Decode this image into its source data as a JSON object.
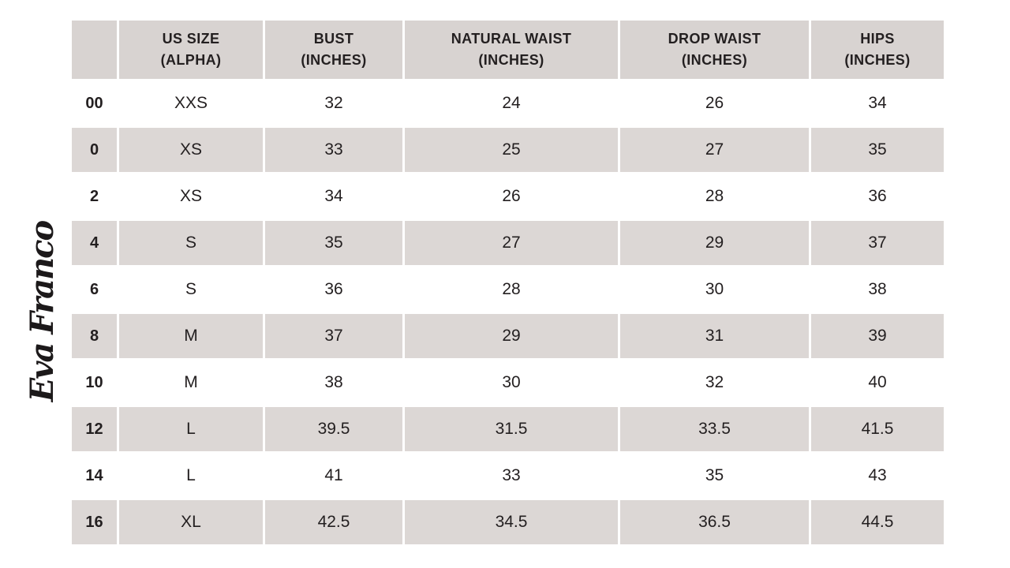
{
  "page": {
    "background": "#ffffff",
    "text_color": "#231f20"
  },
  "logo": {
    "text": "Eva Franco"
  },
  "table": {
    "header_bg": "#d8d3d1",
    "stripe_bg": "#dcd7d5",
    "row_bg": "#ffffff",
    "headers": [
      {
        "line1": "",
        "line2": ""
      },
      {
        "line1": "US SIZE",
        "line2": "(ALPHA)"
      },
      {
        "line1": "BUST",
        "line2": "(INCHES)"
      },
      {
        "line1": "NATURAL WAIST",
        "line2": "(INCHES)"
      },
      {
        "line1": "DROP WAIST",
        "line2": "(INCHES)"
      },
      {
        "line1": "HIPS",
        "line2": "(INCHES)"
      }
    ],
    "rows": [
      {
        "size": "00",
        "alpha": "XXS",
        "bust": "32",
        "natural_waist": "24",
        "drop_waist": "26",
        "hips": "34"
      },
      {
        "size": "0",
        "alpha": "XS",
        "bust": "33",
        "natural_waist": "25",
        "drop_waist": "27",
        "hips": "35"
      },
      {
        "size": "2",
        "alpha": "XS",
        "bust": "34",
        "natural_waist": "26",
        "drop_waist": "28",
        "hips": "36"
      },
      {
        "size": "4",
        "alpha": "S",
        "bust": "35",
        "natural_waist": "27",
        "drop_waist": "29",
        "hips": "37"
      },
      {
        "size": "6",
        "alpha": "S",
        "bust": "36",
        "natural_waist": "28",
        "drop_waist": "30",
        "hips": "38"
      },
      {
        "size": "8",
        "alpha": "M",
        "bust": "37",
        "natural_waist": "29",
        "drop_waist": "31",
        "hips": "39"
      },
      {
        "size": "10",
        "alpha": "M",
        "bust": "38",
        "natural_waist": "30",
        "drop_waist": "32",
        "hips": "40"
      },
      {
        "size": "12",
        "alpha": "L",
        "bust": "39.5",
        "natural_waist": "31.5",
        "drop_waist": "33.5",
        "hips": "41.5"
      },
      {
        "size": "14",
        "alpha": "L",
        "bust": "41",
        "natural_waist": "33",
        "drop_waist": "35",
        "hips": "43"
      },
      {
        "size": "16",
        "alpha": "XL",
        "bust": "42.5",
        "natural_waist": "34.5",
        "drop_waist": "36.5",
        "hips": "44.5"
      }
    ]
  },
  "chart_data": {
    "type": "table",
    "title": "Eva Franco Size Chart",
    "columns": [
      "",
      "US SIZE (ALPHA)",
      "BUST (INCHES)",
      "NATURAL WAIST (INCHES)",
      "DROP WAIST (INCHES)",
      "HIPS (INCHES)"
    ],
    "rows": [
      [
        "00",
        "XXS",
        32,
        24,
        26,
        34
      ],
      [
        "0",
        "XS",
        33,
        25,
        27,
        35
      ],
      [
        "2",
        "XS",
        34,
        26,
        28,
        36
      ],
      [
        "4",
        "S",
        35,
        27,
        29,
        37
      ],
      [
        "6",
        "S",
        36,
        28,
        30,
        38
      ],
      [
        "8",
        "M",
        37,
        29,
        31,
        39
      ],
      [
        "10",
        "M",
        38,
        30,
        32,
        40
      ],
      [
        "12",
        "L",
        39.5,
        31.5,
        33.5,
        41.5
      ],
      [
        "14",
        "L",
        41,
        33,
        35,
        43
      ],
      [
        "16",
        "XL",
        42.5,
        34.5,
        36.5,
        44.5
      ]
    ]
  }
}
